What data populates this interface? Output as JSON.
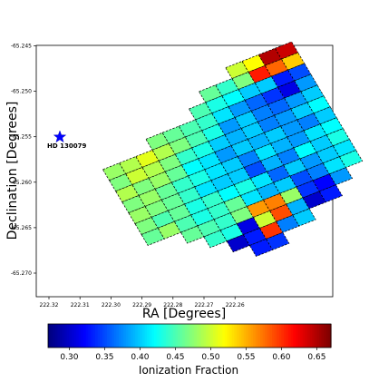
{
  "chart_data": {
    "type": "heatmap",
    "xlabel": "RA [Degrees]",
    "ylabel": "Declination [Degrees]",
    "x_ticks": [
      "222.32",
      "222.31",
      "222.30",
      "222.29",
      "222.28",
      "222.27",
      "222.26"
    ],
    "y_ticks": [
      "-65.245",
      "-65.250",
      "-65.255",
      "-65.260",
      "-65.265",
      "-65.270"
    ],
    "colorbar": {
      "label": "Ionization Fraction",
      "range": [
        0.27,
        0.67
      ],
      "ticks": [
        "0.30",
        "0.35",
        "0.40",
        "0.45",
        "0.50",
        "0.55",
        "0.60",
        "0.65"
      ],
      "colormap": "jet"
    },
    "annotation": {
      "label": "HD 130079",
      "marker": "star",
      "color": "#0000ff",
      "ra": 222.319,
      "dec": -65.2548
    },
    "grid_values": [
      [
        null,
        null,
        null,
        null,
        null,
        null,
        null,
        null,
        null,
        0.5,
        0.52,
        0.65,
        0.64
      ],
      [
        null,
        null,
        null,
        null,
        null,
        null,
        null,
        0.46,
        0.44,
        0.47,
        0.61,
        0.58,
        0.54
      ],
      [
        null,
        null,
        null,
        null,
        null,
        null,
        0.45,
        0.43,
        0.42,
        0.4,
        0.4,
        0.33,
        0.35
      ],
      [
        null,
        null,
        null,
        0.47,
        0.46,
        0.45,
        0.44,
        0.41,
        0.38,
        0.36,
        0.34,
        0.31,
        0.38
      ],
      [
        0.48,
        0.49,
        0.51,
        0.49,
        0.47,
        0.45,
        0.43,
        0.38,
        0.4,
        0.37,
        0.36,
        0.38,
        0.4
      ],
      [
        0.47,
        0.5,
        0.49,
        0.47,
        0.44,
        0.43,
        0.4,
        0.39,
        0.4,
        0.37,
        0.38,
        0.4,
        0.42
      ],
      [
        0.49,
        0.47,
        0.48,
        0.46,
        0.42,
        0.41,
        0.38,
        0.4,
        0.39,
        0.4,
        0.38,
        0.37,
        0.4
      ],
      [
        0.47,
        0.48,
        0.46,
        0.44,
        0.43,
        0.41,
        0.4,
        0.37,
        0.41,
        0.39,
        0.38,
        0.41,
        0.42
      ],
      [
        0.48,
        0.47,
        0.46,
        0.44,
        0.41,
        0.4,
        0.4,
        0.35,
        0.39,
        0.37,
        0.42,
        0.4,
        0.43
      ],
      [
        0.47,
        0.45,
        0.46,
        0.43,
        0.44,
        0.42,
        0.43,
        0.41,
        0.36,
        0.4,
        0.38,
        0.4,
        0.41
      ],
      [
        0.46,
        0.48,
        0.45,
        0.43,
        0.44,
        0.46,
        0.41,
        0.39,
        0.4,
        0.35,
        0.37,
        0.41,
        0.43
      ],
      [
        null,
        null,
        0.46,
        0.45,
        0.44,
        0.47,
        0.56,
        0.57,
        0.48,
        0.34,
        0.32,
        0.38,
        null
      ],
      [
        null,
        null,
        null,
        0.44,
        0.43,
        0.31,
        0.5,
        0.59,
        0.39,
        0.3,
        0.33,
        null,
        null
      ],
      [
        null,
        null,
        null,
        null,
        0.3,
        0.33,
        0.6,
        0.37,
        0.4,
        null,
        null,
        null,
        null
      ],
      [
        null,
        null,
        null,
        null,
        null,
        0.33,
        0.34,
        null,
        null,
        null,
        null,
        null,
        null
      ]
    ]
  }
}
